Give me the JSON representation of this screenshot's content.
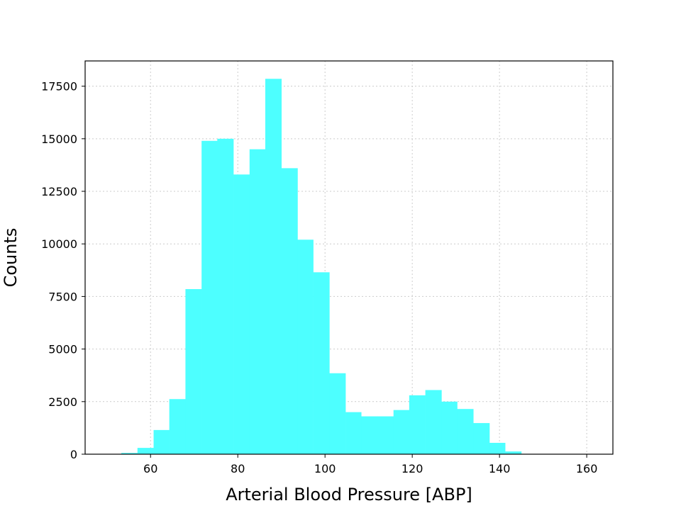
{
  "chart_data": {
    "type": "bar",
    "xlabel": "Arterial Blood Pressure [ABP]",
    "ylabel": "Counts",
    "xlim": [
      45,
      166
    ],
    "ylim": [
      0,
      18700
    ],
    "bin_width": 3.67,
    "bins": [
      {
        "x0": 53.3,
        "x1": 57.0,
        "value": 60
      },
      {
        "x0": 57.0,
        "x1": 60.7,
        "value": 300
      },
      {
        "x0": 60.7,
        "x1": 64.3,
        "value": 1150
      },
      {
        "x0": 64.3,
        "x1": 68.0,
        "value": 2620
      },
      {
        "x0": 68.0,
        "x1": 71.7,
        "value": 7850
      },
      {
        "x0": 71.7,
        "x1": 75.3,
        "value": 14900
      },
      {
        "x0": 75.3,
        "x1": 79.0,
        "value": 15000
      },
      {
        "x0": 79.0,
        "x1": 82.7,
        "value": 13300
      },
      {
        "x0": 82.7,
        "x1": 86.3,
        "value": 14500
      },
      {
        "x0": 86.3,
        "x1": 90.0,
        "value": 17850
      },
      {
        "x0": 90.0,
        "x1": 93.7,
        "value": 13600
      },
      {
        "x0": 93.7,
        "x1": 97.3,
        "value": 10200
      },
      {
        "x0": 97.3,
        "x1": 101.0,
        "value": 8650
      },
      {
        "x0": 101.0,
        "x1": 104.7,
        "value": 3850
      },
      {
        "x0": 104.7,
        "x1": 108.3,
        "value": 2000
      },
      {
        "x0": 108.3,
        "x1": 112.0,
        "value": 1800
      },
      {
        "x0": 112.0,
        "x1": 115.7,
        "value": 1800
      },
      {
        "x0": 115.7,
        "x1": 119.3,
        "value": 2100
      },
      {
        "x0": 119.3,
        "x1": 123.0,
        "value": 2800
      },
      {
        "x0": 123.0,
        "x1": 126.7,
        "value": 3050
      },
      {
        "x0": 126.7,
        "x1": 130.3,
        "value": 2500
      },
      {
        "x0": 130.3,
        "x1": 134.0,
        "value": 2150
      },
      {
        "x0": 134.0,
        "x1": 137.7,
        "value": 1480
      },
      {
        "x0": 137.7,
        "x1": 141.3,
        "value": 540
      },
      {
        "x0": 141.3,
        "x1": 145.0,
        "value": 130
      }
    ],
    "x_ticks": [
      60,
      80,
      100,
      120,
      140,
      160
    ],
    "x_tick_labels": [
      "60",
      "80",
      "100",
      "120",
      "140",
      "160"
    ],
    "y_ticks": [
      0,
      2500,
      5000,
      7500,
      10000,
      12500,
      15000,
      17500
    ],
    "y_tick_labels": [
      "0",
      "2500",
      "5000",
      "7500",
      "10000",
      "12500",
      "15000",
      "17500"
    ],
    "grid": true,
    "bar_color": "#4dffff",
    "grid_color": "#cccccc",
    "legend": "none"
  }
}
